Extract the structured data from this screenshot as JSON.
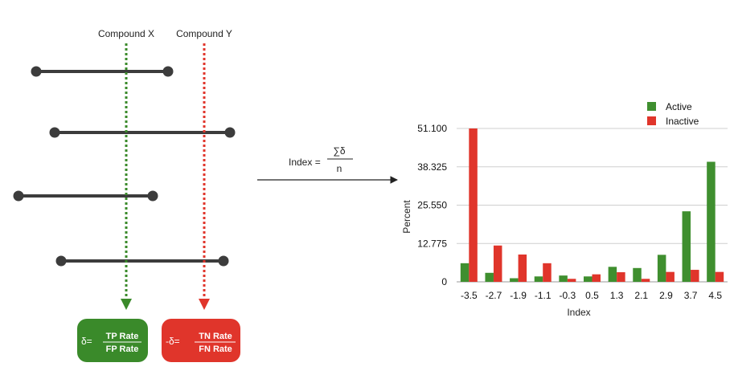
{
  "diagram": {
    "compound_x_label": "Compound X",
    "compound_y_label": "Compound Y",
    "formula": {
      "lhs": "Index =",
      "numerator": "∑δ",
      "denominator": "n"
    },
    "green_box": {
      "prefix": "δ=",
      "numerator": "TP Rate",
      "denominator": "FP Rate",
      "color": "#3a8a2a"
    },
    "red_box": {
      "prefix": "-δ=",
      "numerator": "TN Rate",
      "denominator": "FN Rate",
      "color": "#e0352b"
    },
    "green_line_color": "#3a8a2a",
    "red_line_color": "#e0352b",
    "segment_color": "#3c3c3c"
  },
  "chart_data": {
    "type": "bar",
    "categories": [
      "-3.5",
      "-2.7",
      "-1.9",
      "-1.1",
      "-0.3",
      "0.5",
      "1.3",
      "2.1",
      "2.9",
      "3.7",
      "4.5"
    ],
    "series": [
      {
        "name": "Active",
        "color": "#3f8f2f",
        "values": [
          6.2,
          3.0,
          1.2,
          1.8,
          2.1,
          1.8,
          5.0,
          4.6,
          9.0,
          23.5,
          40.0
        ]
      },
      {
        "name": "Inactive",
        "color": "#e0352b",
        "values": [
          51.1,
          12.1,
          9.1,
          6.2,
          1.0,
          2.5,
          3.2,
          1.0,
          3.3,
          4.0,
          3.3
        ]
      }
    ],
    "yticks": [
      "51.100",
      "38.325",
      "25.550",
      "12.775",
      "0"
    ],
    "ylim": [
      0,
      51.1
    ],
    "xlabel": "Index",
    "ylabel": "Percent",
    "grid": true,
    "legend_position": "top-right"
  }
}
